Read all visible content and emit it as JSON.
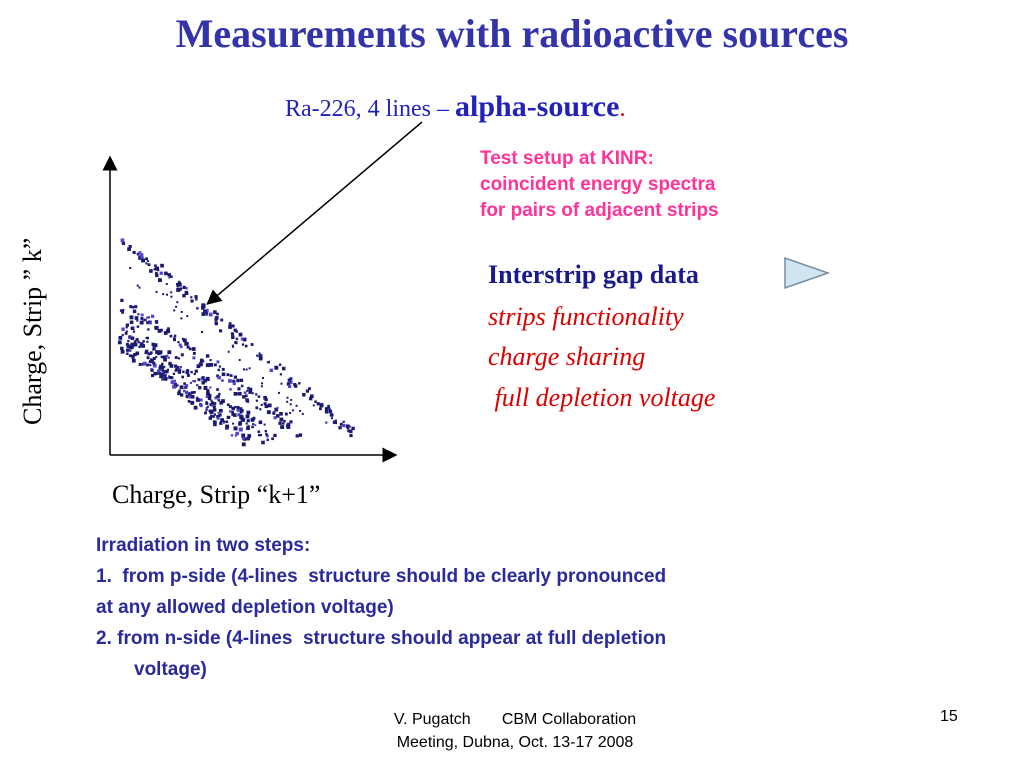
{
  "slide": {
    "title": "Measurements with radioactive sources",
    "subtitle": {
      "prefix": "Ra-226,  4 lines – ",
      "emphasis": "alpha-source",
      "suffix": "."
    },
    "setup_note": [
      "Test setup at KINR:",
      "coincident energy spectra",
      "for pairs of adjacent strips"
    ],
    "interstrip": {
      "title": "Interstrip gap data",
      "arrow_icon": "right-triangle-arrow-icon",
      "items": [
        "strips functionality",
        "charge sharing",
        " full depletion voltage"
      ]
    },
    "plot": {
      "ylabel": "Charge, Strip ” k”",
      "xlabel": "Charge, Strip “k+1”",
      "colors": {
        "points": "#1a1a6e",
        "axis": "#000000"
      }
    },
    "irradiation": {
      "heading": "Irradiation in two steps:",
      "steps": [
        {
          "num": "1.",
          "text": "  from p-side (4-lines  structure should be clearly pronounced"
        },
        {
          "num": "",
          "text": "at any allowed depletion voltage)"
        },
        {
          "num": "2.",
          "text": " from n-side (4-lines  structure should appear at full depletion"
        },
        {
          "num": "",
          "text": "voltage)"
        }
      ]
    },
    "footer": {
      "line1": "V. Pugatch       CBM Collaboration",
      "line2": "Meeting, Dubna, Oct. 13-17 2008",
      "page": "15"
    }
  }
}
